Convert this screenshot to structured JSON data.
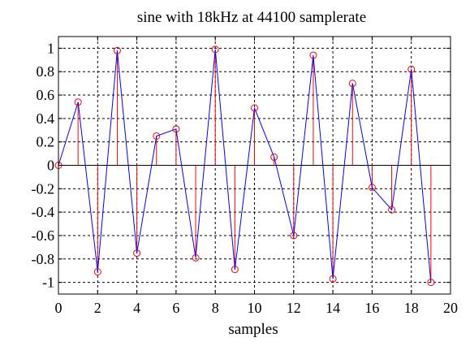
{
  "chart_data": {
    "type": "stem+line",
    "title": "sine with 18kHz at 44100 samplerate",
    "xlabel": "samples",
    "ylabel": "",
    "xlim": [
      0,
      20
    ],
    "ylim": [
      -1.1,
      1.1
    ],
    "grid": true,
    "x_ticks": [
      "0",
      "2",
      "4",
      "6",
      "8",
      "10",
      "12",
      "14",
      "16",
      "18",
      "20"
    ],
    "y_ticks": [
      "1",
      "0.8",
      "0.6",
      "0.4",
      "0.2",
      "0",
      "-0.2",
      "-0.4",
      "-0.6",
      "-0.8",
      "-1"
    ],
    "x_tick_values": [
      0,
      2,
      4,
      6,
      8,
      10,
      12,
      14,
      16,
      18,
      20
    ],
    "y_tick_values": [
      1,
      0.8,
      0.6,
      0.4,
      0.2,
      0,
      -0.2,
      -0.4,
      -0.6,
      -0.8,
      -1
    ],
    "x": [
      0,
      1,
      2,
      3,
      4,
      5,
      6,
      7,
      8,
      9,
      10,
      11,
      12,
      13,
      14,
      15,
      16,
      17,
      18,
      19
    ],
    "y": [
      0,
      0.54,
      -0.91,
      0.98,
      -0.75,
      0.25,
      0.31,
      -0.79,
      0.99,
      -0.89,
      0.49,
      0.07,
      -0.6,
      0.94,
      -0.97,
      0.7,
      -0.19,
      -0.38,
      0.82,
      -1.0
    ],
    "colors": {
      "line": "#0000ff",
      "stem": "#ff0000",
      "marker": "#ff0000",
      "grid": "#000000"
    }
  }
}
